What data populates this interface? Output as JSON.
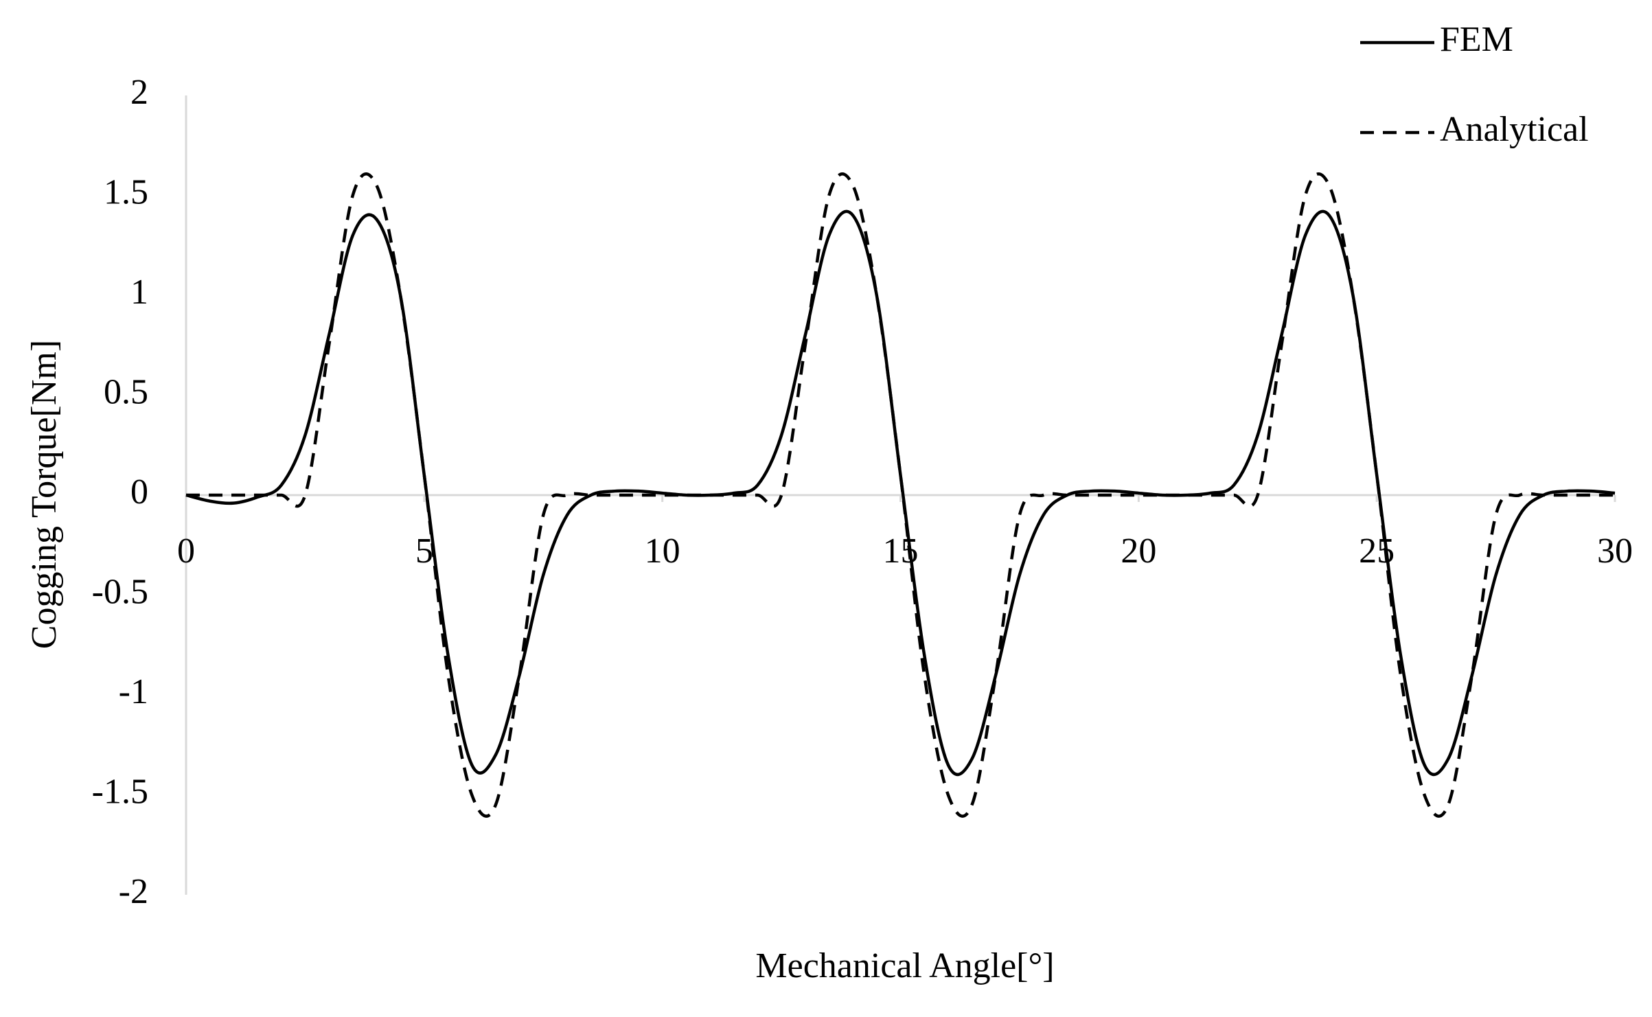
{
  "chart_data": {
    "type": "line",
    "x_label": "Mechanical Angle[°]",
    "y_label": "Cogging Torque[Nm]",
    "x": [
      0,
      0.5,
      1,
      1.5,
      2,
      2.5,
      3,
      3.5,
      4,
      4.5,
      5,
      5.5,
      6,
      6.5,
      7,
      7.5,
      8,
      8.5,
      9,
      9.5,
      10,
      10.5,
      11,
      11.5,
      12,
      12.5,
      13,
      13.5,
      14,
      14.5,
      15,
      15.5,
      16,
      16.5,
      17,
      17.5,
      18,
      18.5,
      19,
      19.5,
      20,
      20.5,
      21,
      21.5,
      22,
      22.5,
      23,
      23.5,
      24,
      24.5,
      25,
      25.5,
      26,
      26.5,
      27,
      27.5,
      28,
      28.5,
      29,
      29.5,
      30
    ],
    "series": [
      {
        "name": "FEM",
        "color": "#000000",
        "dash": false,
        "values": [
          0,
          -0.03,
          -0.04,
          -0.01,
          0.05,
          0.3,
          0.8,
          1.3,
          1.38,
          1.0,
          0.1,
          -0.8,
          -1.35,
          -1.3,
          -0.9,
          -0.4,
          -0.1,
          0.0,
          0.02,
          0.02,
          0.01,
          0.0,
          0.0,
          0.01,
          0.05,
          0.3,
          0.8,
          1.3,
          1.4,
          1.0,
          0.1,
          -0.8,
          -1.35,
          -1.32,
          -0.9,
          -0.4,
          -0.1,
          0.0,
          0.02,
          0.02,
          0.01,
          0.0,
          0.0,
          0.01,
          0.05,
          0.3,
          0.8,
          1.3,
          1.4,
          1.0,
          0.1,
          -0.8,
          -1.35,
          -1.32,
          -0.9,
          -0.4,
          -0.1,
          0.0,
          0.02,
          0.02,
          0.01
        ]
      },
      {
        "name": "Analytical",
        "color": "#000000",
        "dash": true,
        "values": [
          0,
          0,
          0,
          0,
          0,
          0,
          0.75,
          1.5,
          1.55,
          1.0,
          0.1,
          -0.9,
          -1.5,
          -1.55,
          -0.9,
          -0.1,
          0,
          0,
          0,
          0,
          0,
          0,
          0,
          0,
          0,
          0,
          0.75,
          1.5,
          1.55,
          1.0,
          0.1,
          -0.9,
          -1.5,
          -1.55,
          -0.9,
          -0.1,
          0,
          0,
          0,
          0,
          0,
          0,
          0,
          0,
          0,
          0,
          0.75,
          1.5,
          1.55,
          1.0,
          0.1,
          -0.9,
          -1.5,
          -1.55,
          -0.9,
          -0.1,
          0,
          0,
          0,
          0,
          0
        ]
      }
    ],
    "xlim": [
      0,
      30
    ],
    "xticks": [
      0,
      5,
      10,
      15,
      20,
      25,
      30
    ],
    "ylim": [
      -2,
      2
    ],
    "yticks": [
      -2,
      -1.5,
      -1,
      -0.5,
      0,
      0.5,
      1,
      1.5,
      2
    ],
    "grid": false,
    "legend": "top-right"
  }
}
